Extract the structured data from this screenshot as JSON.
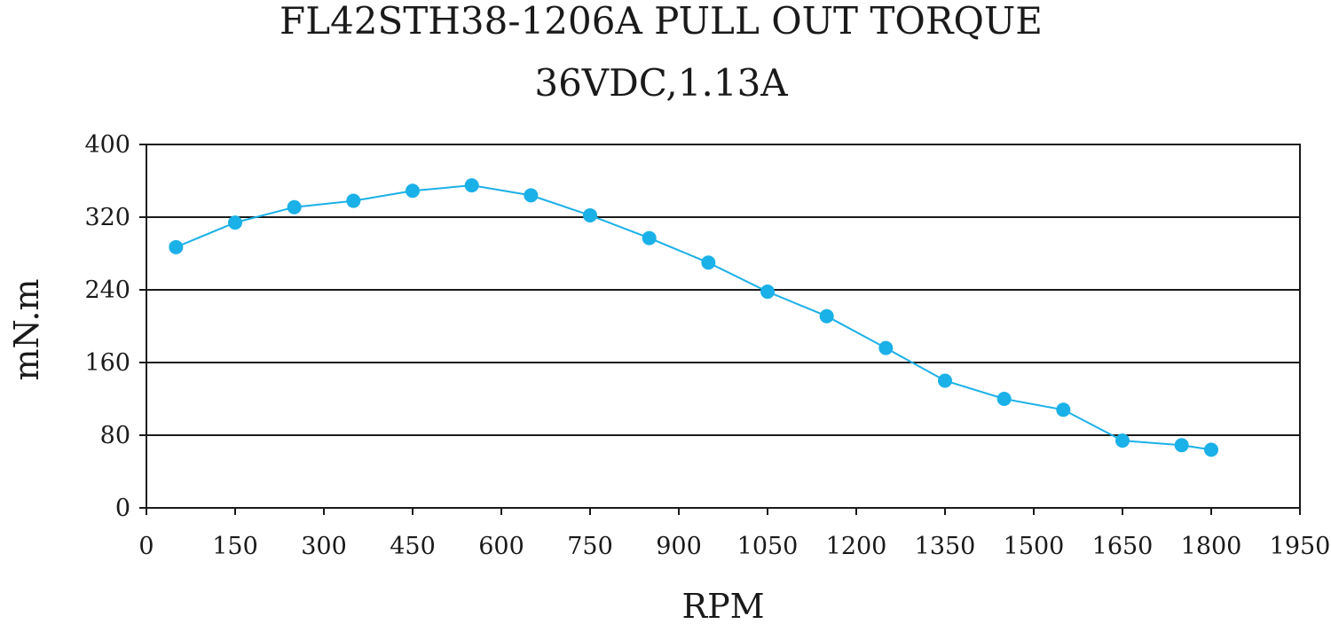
{
  "chart_data": {
    "type": "line",
    "title": "FL42STH38-1206A PULL OUT TORQUE",
    "subtitle": "36VDC,1.13A",
    "xlabel": "RPM",
    "ylabel": "mN.m",
    "xlim": [
      0,
      1950
    ],
    "ylim": [
      0,
      400
    ],
    "xticks": [
      0,
      150,
      300,
      450,
      600,
      750,
      900,
      1050,
      1200,
      1350,
      1500,
      1650,
      1800,
      1950
    ],
    "yticks": [
      0,
      80,
      160,
      240,
      320,
      400
    ],
    "grid": "horizontal",
    "legend": "none",
    "series_color": "#1ab0e8",
    "series": [
      {
        "x": [
          50,
          150,
          250,
          350,
          450,
          550,
          650,
          750,
          850,
          950,
          1050,
          1150,
          1250,
          1350,
          1450,
          1550,
          1650,
          1750,
          1800
        ],
        "y": [
          287,
          314,
          331,
          338,
          349,
          355,
          344,
          322,
          297,
          270,
          238,
          211,
          176,
          140,
          120,
          108,
          74,
          69,
          64
        ]
      }
    ]
  }
}
